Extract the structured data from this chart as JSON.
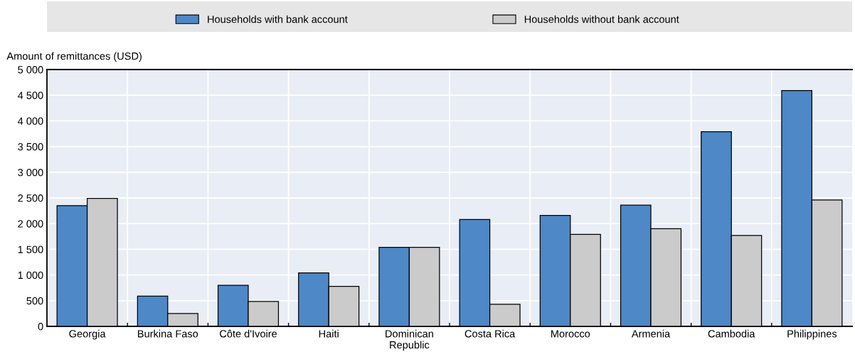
{
  "chart_data": {
    "type": "bar",
    "ylabel": "Amount of remittances (USD)",
    "categories": [
      "Georgia",
      "Burkina Faso",
      "Côte d'Ivoire",
      "Haiti",
      "Dominican\nRepublic",
      "Costa Rica",
      "Morocco",
      "Armenia",
      "Cambodia",
      "Philippines"
    ],
    "series": [
      {
        "name": "Households with bank account",
        "color": "#4e88c7",
        "values": [
          2350,
          590,
          800,
          1040,
          1540,
          2080,
          2160,
          2360,
          3790,
          4590
        ]
      },
      {
        "name": "Households without bank account",
        "color": "#cbcbcb",
        "values": [
          2490,
          250,
          485,
          780,
          1540,
          430,
          1790,
          1900,
          1770,
          2460
        ]
      }
    ],
    "ylim": [
      0,
      5000
    ],
    "yticks": [
      {
        "value": 0,
        "label": "0"
      },
      {
        "value": 500,
        "label": "500"
      },
      {
        "value": 1000,
        "label": "1 000"
      },
      {
        "value": 1500,
        "label": "1 500"
      },
      {
        "value": 2000,
        "label": "2 000"
      },
      {
        "value": 2500,
        "label": "2 500"
      },
      {
        "value": 3000,
        "label": "3 000"
      },
      {
        "value": 3500,
        "label": "3 500"
      },
      {
        "value": 4000,
        "label": "4 000"
      },
      {
        "value": 4500,
        "label": "4 500"
      },
      {
        "value": 5000,
        "label": "5 000"
      }
    ],
    "grid": true,
    "legend": "top"
  }
}
